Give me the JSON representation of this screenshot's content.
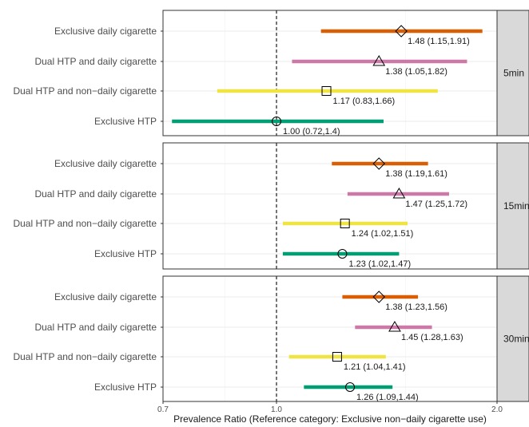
{
  "chart_data": {
    "type": "forest",
    "xlabel": "Prevalence Ratio (Reference category: Exclusive non−daily cigarette use)",
    "x_scale": "log",
    "xlim": [
      0.7,
      2.0
    ],
    "x_ticks": [
      "0.7",
      "1.0",
      "2.0"
    ],
    "reference_line": 1.0,
    "grid": true,
    "legend": "none",
    "series": [
      {
        "name": "Exclusive daily cigarette",
        "color": "#d95f02",
        "marker": "diamond"
      },
      {
        "name": "Dual HTP and daily cigarette",
        "color": "#cc79a7",
        "marker": "triangle"
      },
      {
        "name": "Dual HTP and non−daily cigarette",
        "color": "#f0e442",
        "marker": "square"
      },
      {
        "name": "Exclusive HTP",
        "color": "#009e73",
        "marker": "circle"
      }
    ],
    "panels": [
      {
        "strip": "5min",
        "rows": [
          {
            "label": "Exclusive daily cigarette",
            "est": 1.48,
            "lo": 1.15,
            "hi": 1.91,
            "text": "1.48 (1.15,1.91)"
          },
          {
            "label": "Dual HTP and daily cigarette",
            "est": 1.38,
            "lo": 1.05,
            "hi": 1.82,
            "text": "1.38 (1.05,1.82)"
          },
          {
            "label": "Dual HTP and non−daily cigarette",
            "est": 1.17,
            "lo": 0.83,
            "hi": 1.66,
            "text": "1.17 (0.83,1.66)"
          },
          {
            "label": "Exclusive HTP",
            "est": 1.0,
            "lo": 0.72,
            "hi": 1.4,
            "text": "1.00 (0.72,1.4)"
          }
        ]
      },
      {
        "strip": "15min",
        "rows": [
          {
            "label": "Exclusive daily cigarette",
            "est": 1.38,
            "lo": 1.19,
            "hi": 1.61,
            "text": "1.38 (1.19,1.61)"
          },
          {
            "label": "Dual HTP and daily cigarette",
            "est": 1.47,
            "lo": 1.25,
            "hi": 1.72,
            "text": "1.47 (1.25,1.72)"
          },
          {
            "label": "Dual HTP and non−daily cigarette",
            "est": 1.24,
            "lo": 1.02,
            "hi": 1.51,
            "text": "1.24 (1.02,1.51)"
          },
          {
            "label": "Exclusive HTP",
            "est": 1.23,
            "lo": 1.02,
            "hi": 1.47,
            "text": "1.23 (1.02,1.47)"
          }
        ]
      },
      {
        "strip": "30min",
        "rows": [
          {
            "label": "Exclusive daily cigarette",
            "est": 1.38,
            "lo": 1.23,
            "hi": 1.56,
            "text": "1.38 (1.23,1.56)"
          },
          {
            "label": "Dual HTP and daily cigarette",
            "est": 1.45,
            "lo": 1.28,
            "hi": 1.63,
            "text": "1.45 (1.28,1.63)"
          },
          {
            "label": "Dual HTP and non−daily cigarette",
            "est": 1.21,
            "lo": 1.04,
            "hi": 1.41,
            "text": "1.21 (1.04,1.41)"
          },
          {
            "label": "Exclusive HTP",
            "est": 1.26,
            "lo": 1.09,
            "hi": 1.44,
            "text": "1.26 (1.09,1.44)"
          }
        ]
      }
    ]
  }
}
